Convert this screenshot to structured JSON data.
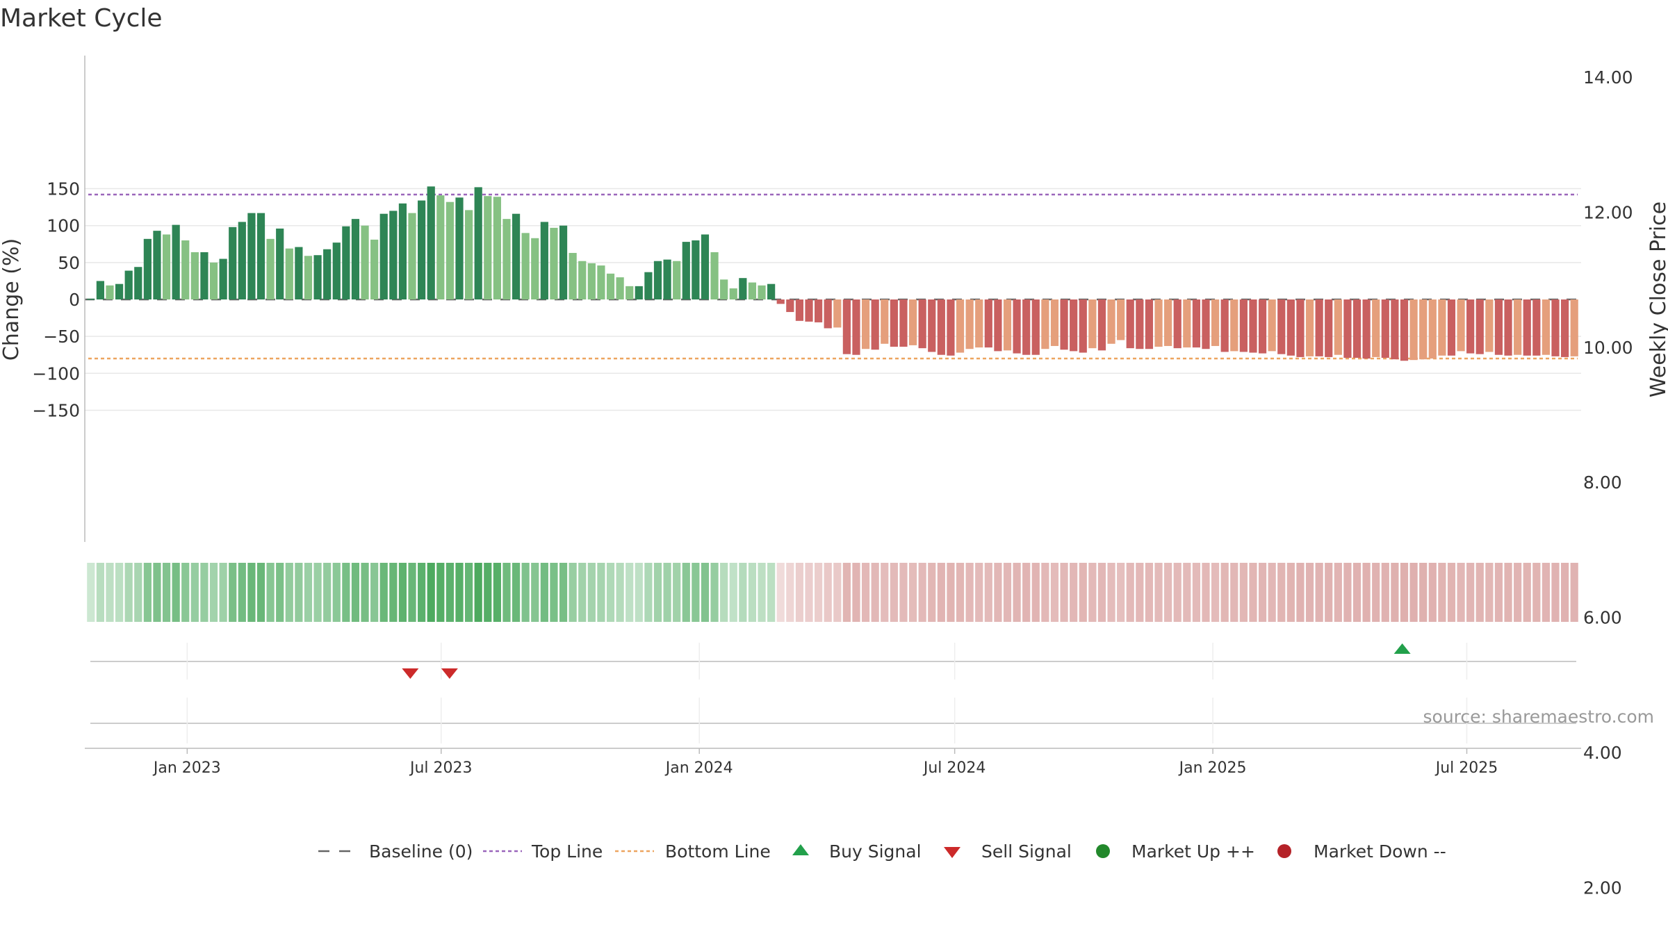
{
  "chart_data": {
    "type": "bar",
    "title": "Market Cycle",
    "ylabel": "Change (%)",
    "y2label": "Weekly Close Price",
    "ylim": [
      -165,
      160
    ],
    "y2lim": [
      0.4,
      14.6
    ],
    "y_ticks": [
      150,
      100,
      50,
      0,
      -50,
      -100,
      -150
    ],
    "y_tick_labels": [
      "150",
      "100",
      "50",
      "0",
      "−50",
      "−100",
      "−150"
    ],
    "y2_ticks": [
      14,
      12,
      10,
      8,
      6,
      4,
      2
    ],
    "y2_tick_labels": [
      "14.00",
      "12.00",
      "10.00",
      "8.00",
      "6.00",
      "4.00",
      "2.00"
    ],
    "top_line": 142,
    "bottom_line": -80,
    "start_date": "2022-10-21",
    "end_date": "2025-09-19",
    "x_ticks": [
      {
        "date": "2023-01-01",
        "label": "Jan 2023"
      },
      {
        "date": "2023-07-01",
        "label": "Jul 2023"
      },
      {
        "date": "2024-01-01",
        "label": "Jan 2024"
      },
      {
        "date": "2024-07-01",
        "label": "Jul 2024"
      },
      {
        "date": "2025-01-01",
        "label": "Jan 2025"
      },
      {
        "date": "2025-07-01",
        "label": "Jul 2025"
      }
    ],
    "values": [
      1,
      25,
      19,
      21,
      39,
      44,
      82,
      93,
      88,
      101,
      80,
      64,
      64,
      50,
      55,
      98,
      105,
      117,
      117,
      82,
      96,
      69,
      71,
      59,
      60,
      68,
      77,
      99,
      109,
      100,
      81,
      116,
      120,
      130,
      117,
      134,
      153,
      141,
      132,
      138,
      121,
      152,
      140,
      139,
      109,
      116,
      90,
      83,
      105,
      97,
      100,
      63,
      52,
      49,
      46,
      35,
      30,
      18,
      18,
      37,
      52,
      54,
      52,
      78,
      80,
      88,
      64,
      27,
      15,
      29,
      23,
      19,
      21,
      -6,
      -17,
      -29,
      -30,
      -31,
      -39,
      -38,
      -74,
      -75,
      -67,
      -68,
      -60,
      -64,
      -64,
      -62,
      -66,
      -71,
      -75,
      -76,
      -72,
      -67,
      -65,
      -65,
      -70,
      -69,
      -73,
      -75,
      -75,
      -67,
      -63,
      -68,
      -70,
      -72,
      -66,
      -69,
      -60,
      -55,
      -66,
      -67,
      -67,
      -64,
      -63,
      -66,
      -65,
      -65,
      -67,
      -63,
      -71,
      -70,
      -71,
      -72,
      -73,
      -70,
      -74,
      -76,
      -78,
      -77,
      -77,
      -78,
      -75,
      -79,
      -79,
      -80,
      -78,
      -79,
      -81,
      -83,
      -82,
      -81,
      -80,
      -76,
      -76,
      -70,
      -73,
      -74,
      -71,
      -75,
      -76,
      -75,
      -76,
      -76,
      -75,
      -77,
      -78,
      -77
    ],
    "bar_colors": {
      "up_strong": "#2e8555",
      "up_weak": "#86c183",
      "down_strong": "#c96060",
      "down_weak": "#e59f7c"
    },
    "heatmap_colors": {
      "positive": "#4daa5f",
      "negative": "#d08a88"
    },
    "line_colors": {
      "top": "#9a66bb",
      "bottom": "#eda560",
      "baseline": "#666666"
    },
    "sell_signals": [
      "2023-06-09",
      "2023-07-07"
    ],
    "buy_signals": [
      "2025-05-16"
    ],
    "signal_colors": {
      "buy": "#22a04b",
      "sell": "#cc2a2a"
    },
    "source": "source: sharemaestro.com",
    "legend": [
      {
        "label": "Baseline (0)",
        "marker": "dash",
        "color": "#666666"
      },
      {
        "label": "Top Line",
        "marker": "dotted",
        "color": "#9a66bb"
      },
      {
        "label": "Bottom Line",
        "marker": "dotted",
        "color": "#eda560"
      },
      {
        "label": "Buy Signal",
        "marker": "triangle-up",
        "color": "#22a04b"
      },
      {
        "label": "Sell Signal",
        "marker": "triangle-down",
        "color": "#cc2a2a"
      },
      {
        "label": "Market Up ++",
        "marker": "circle",
        "color": "#22882b"
      },
      {
        "label": "Market Down --",
        "marker": "circle",
        "color": "#b52228"
      }
    ]
  }
}
